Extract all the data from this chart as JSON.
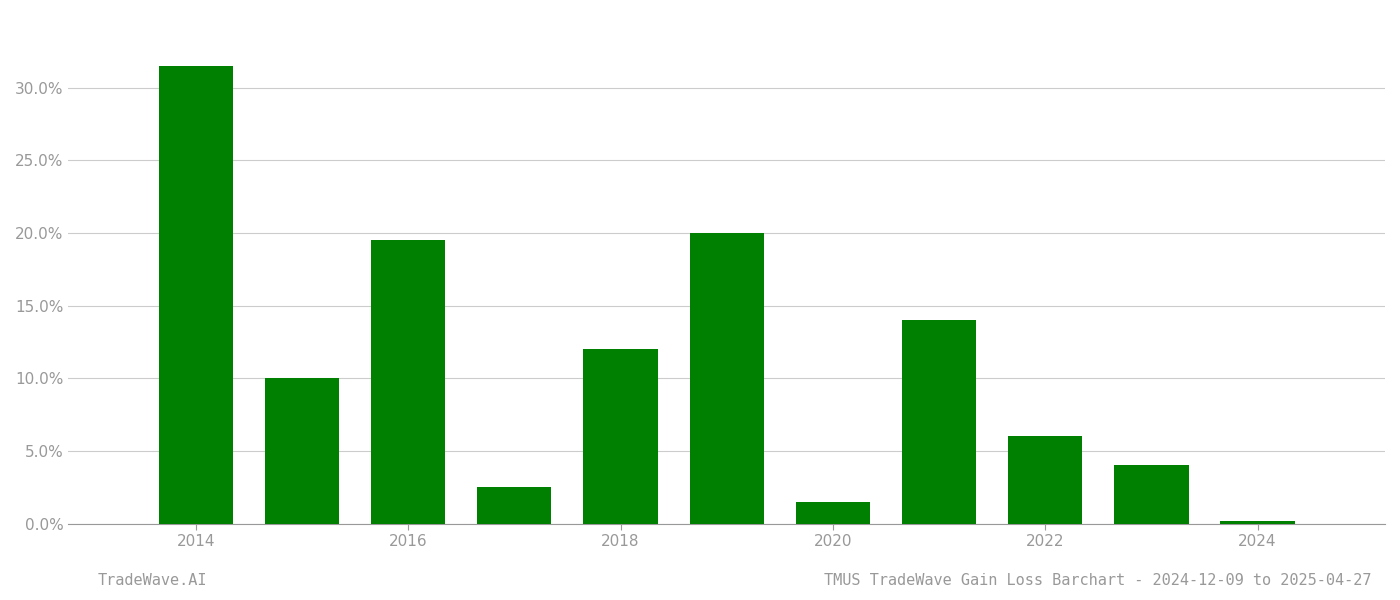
{
  "years": [
    2014,
    2015,
    2016,
    2017,
    2018,
    2019,
    2020,
    2021,
    2022,
    2023,
    2024
  ],
  "values": [
    0.315,
    0.1,
    0.195,
    0.025,
    0.12,
    0.2,
    0.015,
    0.14,
    0.06,
    0.04,
    0.002
  ],
  "bar_color": "#008000",
  "background_color": "#ffffff",
  "grid_color": "#cccccc",
  "axis_label_color": "#999999",
  "title_text": "TMUS TradeWave Gain Loss Barchart - 2024-12-09 to 2025-04-27",
  "watermark_text": "TradeWave.AI",
  "ylim": [
    0,
    0.35
  ],
  "yticks": [
    0.0,
    0.05,
    0.1,
    0.15,
    0.2,
    0.25,
    0.3
  ],
  "xticks": [
    2014,
    2016,
    2018,
    2020,
    2022,
    2024
  ],
  "bar_width": 0.7,
  "xlim_left": 2012.8,
  "xlim_right": 2025.2
}
